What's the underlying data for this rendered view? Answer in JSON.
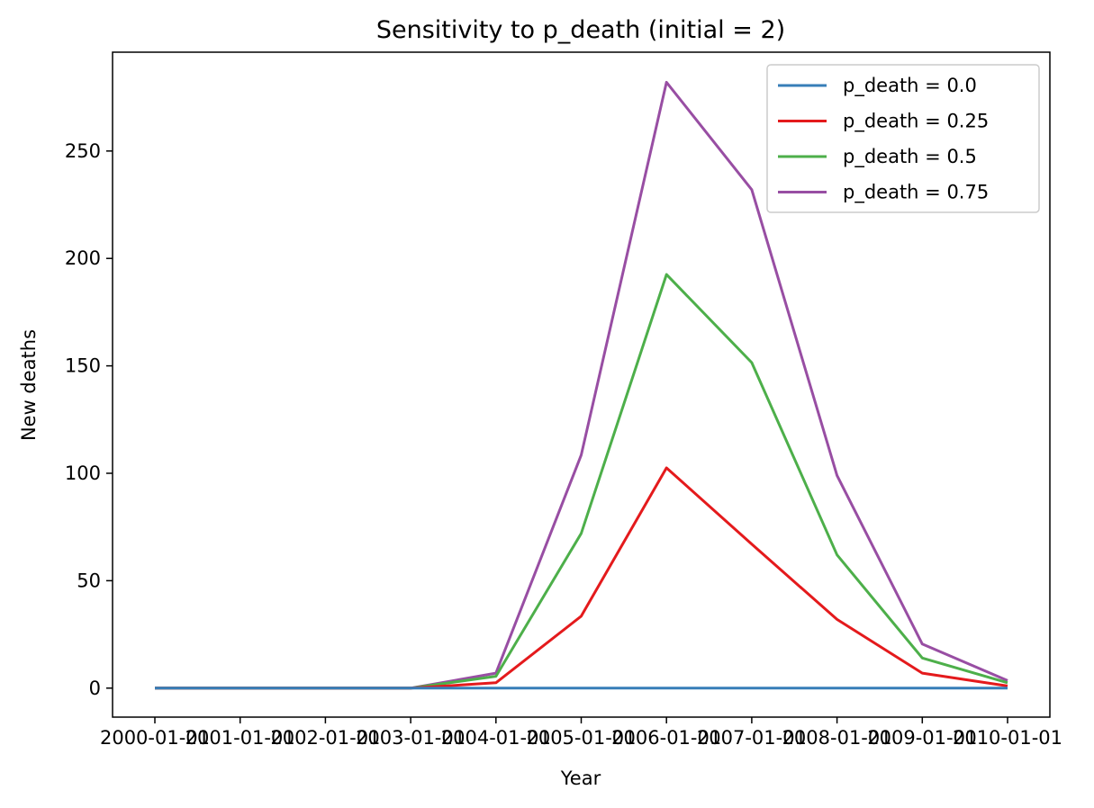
{
  "chart_data": {
    "type": "line",
    "title": "Sensitivity to p_death (initial = 2)",
    "xlabel": "Year",
    "ylabel": "New deaths",
    "x": [
      "2000-01-01",
      "2001-01-01",
      "2002-01-01",
      "2003-01-01",
      "2004-01-01",
      "2005-01-01",
      "2006-01-01",
      "2007-01-01",
      "2008-01-01",
      "2009-01-01",
      "2010-01-01"
    ],
    "y_ticks": [
      0,
      50,
      100,
      150,
      200,
      250
    ],
    "ylim": [
      -13.5,
      296
    ],
    "grid": false,
    "legend_position": "top-right",
    "series": [
      {
        "name": "p_death = 0.0",
        "color": "#377eb8",
        "values": [
          0,
          0,
          0,
          0,
          0,
          0,
          0,
          0,
          0,
          0,
          0
        ]
      },
      {
        "name": "p_death = 0.25",
        "color": "#e41a1c",
        "values": [
          0,
          0,
          0,
          0,
          2.5,
          33.5,
          102.5,
          67,
          32,
          7,
          1
        ]
      },
      {
        "name": "p_death = 0.5",
        "color": "#4daf4a",
        "values": [
          0,
          0,
          0,
          0,
          5.5,
          72,
          192.5,
          151.5,
          62,
          14,
          2.5
        ]
      },
      {
        "name": "p_death = 0.75",
        "color": "#984ea3",
        "values": [
          0,
          0,
          0,
          0,
          7,
          108.5,
          282,
          232,
          99,
          20.5,
          3.5
        ]
      }
    ]
  }
}
